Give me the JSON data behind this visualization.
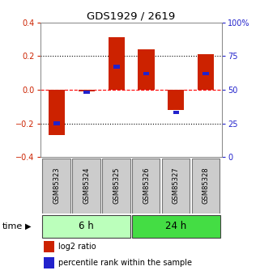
{
  "title": "GDS1929 / 2619",
  "samples": [
    "GSM85323",
    "GSM85324",
    "GSM85325",
    "GSM85326",
    "GSM85327",
    "GSM85328"
  ],
  "log2_ratio": [
    -0.27,
    -0.012,
    0.31,
    0.24,
    -0.12,
    0.21
  ],
  "percentile_rank": [
    25,
    48,
    67,
    62,
    33,
    62
  ],
  "ylim_left": [
    -0.4,
    0.4
  ],
  "ylim_right": [
    0,
    100
  ],
  "yticks_left": [
    -0.4,
    -0.2,
    0.0,
    0.2,
    0.4
  ],
  "yticks_right": [
    0,
    25,
    50,
    75,
    100
  ],
  "ytick_labels_right": [
    "0",
    "25",
    "50",
    "75",
    "100%"
  ],
  "groups": [
    {
      "label": "6 h",
      "indices": [
        0,
        1,
        2
      ],
      "color": "#bbffbb"
    },
    {
      "label": "24 h",
      "indices": [
        3,
        4,
        5
      ],
      "color": "#44dd44"
    }
  ],
  "bar_color_red": "#cc2200",
  "bar_color_blue": "#2222cc",
  "bar_width": 0.55,
  "bg_color": "#ffffff",
  "label_color_left": "#cc2200",
  "label_color_right": "#2222cc",
  "time_label": "time",
  "legend_log2": "log2 ratio",
  "legend_pct": "percentile rank within the sample",
  "sample_box_color": "#cccccc",
  "sample_box_edge": "#777777"
}
